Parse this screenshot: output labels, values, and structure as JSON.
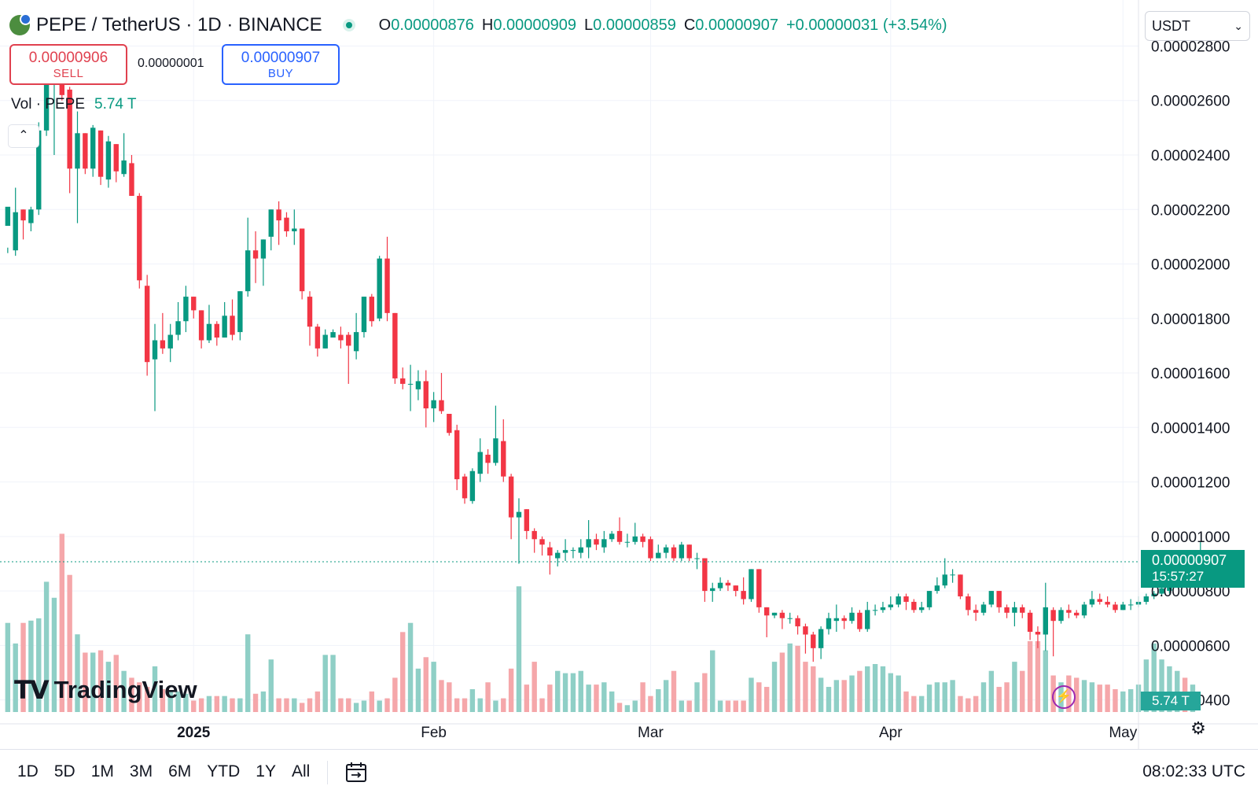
{
  "header": {
    "symbol": "PEPE / TetherUS · 1D · BINANCE",
    "open_key": "O",
    "open": "0.00000876",
    "high_key": "H",
    "high": "0.00000909",
    "low_key": "L",
    "low": "0.00000859",
    "close_key": "C",
    "close": "0.00000907",
    "change": "+0.00000031 (+3.54%)"
  },
  "currency": "USDT",
  "trade": {
    "sell_price": "0.00000906",
    "sell_label": "SELL",
    "spread": "0.00000001",
    "buy_price": "0.00000907",
    "buy_label": "BUY"
  },
  "volume_legend": {
    "label": "Vol · PEPE",
    "value": "5.74 T"
  },
  "price_axis": {
    "labels": [
      "0.00002800",
      "0.00002600",
      "0.00002400",
      "0.00002200",
      "0.00002000",
      "0.00001800",
      "0.00001600",
      "0.00001400",
      "0.00001200",
      "0.00001000",
      "0.00000800",
      "0.00000600",
      "0.00000400"
    ]
  },
  "current_price": {
    "price": "0.00000907",
    "countdown": "15:57:27"
  },
  "current_volume": "5.74 T",
  "time_axis": [
    "2025",
    "Feb",
    "Mar",
    "Apr",
    "May"
  ],
  "toolbar": {
    "ranges": [
      "1D",
      "5D",
      "1M",
      "3M",
      "6M",
      "YTD",
      "1Y",
      "All"
    ],
    "clock": "08:02:33 UTC"
  },
  "branding": "TradingView",
  "colors": {
    "up": "#089981",
    "down": "#f23645",
    "vol_up": "#8fcfc6",
    "vol_down": "#f5a7aa"
  },
  "icons": {
    "collapse": "chevron-up-icon",
    "bolt": "lightning-icon",
    "settings": "gear-icon",
    "calendar": "calendar-icon",
    "status": "market-open-icon"
  },
  "chart_data": {
    "type": "candlestick",
    "timeframe": "1D",
    "y_range": [
      3.7e-06,
      2.94e-05
    ],
    "x_range": [
      "2024-12-07",
      "2025-05-03"
    ],
    "candles": [
      [
        2.14e-05,
        2.21e-05,
        2.06e-05,
        2.04e-05
      ],
      [
        2.05e-05,
        2.19e-05,
        2.28e-05,
        2.03e-05
      ],
      [
        2.2e-05,
        2.16e-05,
        2.2e-05,
        2.09e-05
      ],
      [
        2.15e-05,
        2.2e-05,
        2.21e-05,
        2.12e-05
      ],
      [
        2.2e-05,
        2.49e-05,
        2.52e-05,
        2.18e-05
      ],
      [
        2.49e-05,
        2.66e-05,
        2.71e-05,
        2.47e-05
      ],
      [
        2.66e-05,
        2.71e-05,
        2.8e-05,
        2.4e-05
      ],
      [
        2.7e-05,
        2.62e-05,
        2.76e-05,
        2.6e-05
      ],
      [
        2.64e-05,
        2.35e-05,
        2.65e-05,
        2.26e-05
      ],
      [
        2.35e-05,
        2.48e-05,
        2.56e-05,
        2.15e-05
      ],
      [
        2.48e-05,
        2.35e-05,
        2.48e-05,
        2.33e-05
      ],
      [
        2.35e-05,
        2.5e-05,
        2.51e-05,
        2.32e-05
      ],
      [
        2.49e-05,
        2.32e-05,
        2.49e-05,
        2.29e-05
      ],
      [
        2.31e-05,
        2.45e-05,
        2.47e-05,
        2.28e-05
      ],
      [
        2.44e-05,
        2.34e-05,
        2.44e-05,
        2.3e-05
      ],
      [
        2.33e-05,
        2.38e-05,
        2.48e-05,
        2.32e-05
      ],
      [
        2.37e-05,
        2.25e-05,
        2.4e-05,
        2.25e-05
      ],
      [
        2.25e-05,
        1.94e-05,
        2.26e-05,
        1.91e-05
      ],
      [
        1.92e-05,
        1.64e-05,
        1.96e-05,
        1.59e-05
      ],
      [
        1.65e-05,
        1.72e-05,
        1.78e-05,
        1.46e-05
      ],
      [
        1.72e-05,
        1.69e-05,
        1.82e-05,
        1.67e-05
      ],
      [
        1.69e-05,
        1.74e-05,
        1.78e-05,
        1.64e-05
      ],
      [
        1.74e-05,
        1.79e-05,
        1.86e-05,
        1.72e-05
      ],
      [
        1.79e-05,
        1.88e-05,
        1.92e-05,
        1.75e-05
      ],
      [
        1.88e-05,
        1.83e-05,
        1.88e-05,
        1.8e-05
      ],
      [
        1.83e-05,
        1.72e-05,
        1.83e-05,
        1.69e-05
      ],
      [
        1.72e-05,
        1.78e-05,
        1.85e-05,
        1.71e-05
      ],
      [
        1.78e-05,
        1.73e-05,
        1.79e-05,
        1.7e-05
      ],
      [
        1.73e-05,
        1.81e-05,
        1.86e-05,
        1.73e-05
      ],
      [
        1.81e-05,
        1.74e-05,
        1.87e-05,
        1.72e-05
      ],
      [
        1.75e-05,
        1.9e-05,
        1.9e-05,
        1.72e-05
      ],
      [
        1.9e-05,
        2.05e-05,
        2.17e-05,
        1.88e-05
      ],
      [
        2.05e-05,
        2.02e-05,
        2.12e-05,
        1.93e-05
      ],
      [
        2.02e-05,
        2.09e-05,
        2.09e-05,
        1.92e-05
      ],
      [
        2.1e-05,
        2.2e-05,
        2.2e-05,
        2.05e-05
      ],
      [
        2.2e-05,
        2.16e-05,
        2.23e-05,
        2.07e-05
      ],
      [
        2.17e-05,
        2.12e-05,
        2.19e-05,
        2.1e-05
      ],
      [
        2.12e-05,
        2.13e-05,
        2.2e-05,
        2.07e-05
      ],
      [
        2.13e-05,
        1.9e-05,
        2.13e-05,
        1.87e-05
      ],
      [
        1.88e-05,
        1.77e-05,
        1.9e-05,
        1.7e-05
      ],
      [
        1.77e-05,
        1.69e-05,
        1.78e-05,
        1.66e-05
      ],
      [
        1.69e-05,
        1.74e-05,
        1.76e-05,
        1.69e-05
      ],
      [
        1.73e-05,
        1.75e-05,
        1.76e-05,
        1.74e-05
      ],
      [
        1.74e-05,
        1.72e-05,
        1.77e-05,
        1.69e-05
      ],
      [
        1.74e-05,
        1.7e-05,
        1.75e-05,
        1.56e-05
      ],
      [
        1.68e-05,
        1.75e-05,
        1.82e-05,
        1.65e-05
      ],
      [
        1.75e-05,
        1.88e-05,
        1.88e-05,
        1.73e-05
      ],
      [
        1.88e-05,
        1.79e-05,
        1.89e-05,
        1.77e-05
      ],
      [
        1.8e-05,
        2.02e-05,
        2.03e-05,
        1.79e-05
      ],
      [
        2.02e-05,
        1.82e-05,
        2.1e-05,
        1.79e-05
      ],
      [
        1.82e-05,
        1.58e-05,
        1.82e-05,
        1.56e-05
      ],
      [
        1.58e-05,
        1.56e-05,
        1.62e-05,
        1.54e-05
      ],
      [
        1.56e-05,
        1.56e-05,
        1.63e-05,
        1.46e-05
      ],
      [
        1.54e-05,
        1.57e-05,
        1.61e-05,
        1.5e-05
      ],
      [
        1.57e-05,
        1.47e-05,
        1.61e-05,
        1.4e-05
      ],
      [
        1.47e-05,
        1.5e-05,
        1.53e-05,
        1.42e-05
      ],
      [
        1.5e-05,
        1.46e-05,
        1.6e-05,
        1.45e-05
      ],
      [
        1.45e-05,
        1.38e-05,
        1.45e-05,
        1.37e-05
      ],
      [
        1.39e-05,
        1.21e-05,
        1.41e-05,
        1.17e-05
      ],
      [
        1.22e-05,
        1.14e-05,
        1.23e-05,
        1.12e-05
      ],
      [
        1.13e-05,
        1.24e-05,
        1.25e-05,
        1.12e-05
      ],
      [
        1.23e-05,
        1.31e-05,
        1.36e-05,
        1.2e-05
      ],
      [
        1.3e-05,
        1.27e-05,
        1.32e-05,
        1.23e-05
      ],
      [
        1.27e-05,
        1.36e-05,
        1.48e-05,
        1.26e-05
      ],
      [
        1.35e-05,
        1.22e-05,
        1.43e-05,
        1.2e-05
      ],
      [
        1.22e-05,
        1.07e-05,
        1.23e-05,
        9.9e-06
      ],
      [
        1.07e-05,
        1.09e-05,
        1.14e-05,
        9e-06
      ],
      [
        1.1e-05,
        1.02e-05,
        1.1e-05,
        9.9e-06
      ],
      [
        1.02e-05,
        9.9e-06,
        1.03e-05,
        9.4e-06
      ],
      [
        9.9e-06,
        9.7e-06,
        1e-05,
        9.3e-06
      ],
      [
        9.6e-06,
        9.3e-06,
        9.8e-06,
        8.6e-06
      ],
      [
        9.2e-06,
        9.4e-06,
        9.5e-06,
        8.9e-06
      ],
      [
        9.4e-06,
        9.5e-06,
        9.9e-06,
        9.1e-06
      ],
      [
        9.5e-06,
        9.5e-06,
        9.6e-06,
        9.2e-06
      ],
      [
        9.4e-06,
        9.6e-06,
        9.9e-06,
        9.2e-06
      ],
      [
        9.6e-06,
        9.9e-06,
        1.06e-05,
        9.2e-06
      ],
      [
        9.9e-06,
        9.7e-06,
        1.01e-05,
        9.5e-06
      ],
      [
        9.6e-06,
        9.9e-06,
        1.02e-05,
        9.4e-06
      ],
      [
        9.9e-06,
        1.01e-05,
        1.02e-05,
        9.8e-06
      ],
      [
        1.02e-05,
        9.8e-06,
        1.07e-05,
        9.7e-06
      ],
      [
        9.8e-06,
        9.8e-06,
        1.01e-05,
        9.6e-06
      ],
      [
        9.8e-06,
        1e-05,
        1.05e-05,
        9.7e-06
      ],
      [
        1e-05,
        9.8e-06,
        1.01e-05,
        9.6e-06
      ],
      [
        9.9e-06,
        9.2e-06,
        1e-05,
        9.1e-06
      ],
      [
        9.2e-06,
        9.4e-06,
        9.7e-06,
        9.2e-06
      ],
      [
        9.4e-06,
        9.6e-06,
        9.7e-06,
        9.2e-06
      ],
      [
        9.6e-06,
        9.2e-06,
        9.7e-06,
        9.1e-06
      ],
      [
        9.2e-06,
        9.7e-06,
        9.8e-06,
        9.1e-06
      ],
      [
        9.7e-06,
        9.2e-06,
        9.7e-06,
        9.1e-06
      ],
      [
        9.2e-06,
        9.2e-06,
        9.4e-06,
        8.8e-06
      ],
      [
        9.2e-06,
        8e-06,
        9.2e-06,
        7.6e-06
      ],
      [
        8e-06,
        8.1e-06,
        8.3e-06,
        7.6e-06
      ],
      [
        8.1e-06,
        8.3e-06,
        8.5e-06,
        8e-06
      ],
      [
        8.3e-06,
        8.2e-06,
        8.4e-06,
        8e-06
      ],
      [
        8.2e-06,
        8e-06,
        8.2e-06,
        7.8e-06
      ],
      [
        8e-06,
        7.7e-06,
        8.5e-06,
        7.5e-06
      ],
      [
        7.7e-06,
        8.8e-06,
        8.8e-06,
        7.6e-06
      ],
      [
        8.8e-06,
        7.4e-06,
        8.8e-06,
        7.2e-06
      ],
      [
        7.4e-06,
        7.1e-06,
        7.4e-06,
        6.3e-06
      ],
      [
        7.1e-06,
        7.2e-06,
        7.2e-06,
        7e-06
      ],
      [
        7.2e-06,
        7e-06,
        7.3e-06,
        6.6e-06
      ],
      [
        7e-06,
        7e-06,
        7.2e-06,
        6.8e-06
      ],
      [
        7e-06,
        6.7e-06,
        7.1e-06,
        6.4e-06
      ],
      [
        6.7e-06,
        6.4e-06,
        6.8e-06,
        5.7e-06
      ],
      [
        6.4e-06,
        5.9e-06,
        6.5e-06,
        5.4e-06
      ],
      [
        5.9e-06,
        6.6e-06,
        6.7e-06,
        5.5e-06
      ],
      [
        6.6e-06,
        7e-06,
        7.2e-06,
        6.4e-06
      ],
      [
        6.9e-06,
        7e-06,
        7.5e-06,
        6.5e-06
      ],
      [
        7e-06,
        6.9e-06,
        7.1e-06,
        6.6e-06
      ],
      [
        6.9e-06,
        7.2e-06,
        7.4e-06,
        6.8e-06
      ],
      [
        7.2e-06,
        6.6e-06,
        7.3e-06,
        6.5e-06
      ],
      [
        6.6e-06,
        7.3e-06,
        7.6e-06,
        6.5e-06
      ],
      [
        7.3e-06,
        7.3e-06,
        7.5e-06,
        7.1e-06
      ],
      [
        7.3e-06,
        7.4e-06,
        7.6e-06,
        7.2e-06
      ],
      [
        7.4e-06,
        7.5e-06,
        7.8e-06,
        7.3e-06
      ],
      [
        7.5e-06,
        7.8e-06,
        7.9e-06,
        7.4e-06
      ],
      [
        7.8e-06,
        7.6e-06,
        7.9e-06,
        7.3e-06
      ],
      [
        7.6e-06,
        7.3e-06,
        7.7e-06,
        7.2e-06
      ],
      [
        7.3e-06,
        7.4e-06,
        7.6e-06,
        7.2e-06
      ],
      [
        7.4e-06,
        8e-06,
        8e-06,
        7.3e-06
      ],
      [
        8e-06,
        8.2e-06,
        8.5e-06,
        7.9e-06
      ],
      [
        8.2e-06,
        8.6e-06,
        9.2e-06,
        8.1e-06
      ],
      [
        8.6e-06,
        8.6e-06,
        8.8e-06,
        8.3e-06
      ],
      [
        8.6e-06,
        7.8e-06,
        8.6e-06,
        7.7e-06
      ],
      [
        7.8e-06,
        7.3e-06,
        7.9e-06,
        7.1e-06
      ],
      [
        7.3e-06,
        7.2e-06,
        7.5e-06,
        6.9e-06
      ],
      [
        7.2e-06,
        7.5e-06,
        7.6e-06,
        7.1e-06
      ],
      [
        7.5e-06,
        8e-06,
        8e-06,
        7.4e-06
      ],
      [
        8e-06,
        7.4e-06,
        8e-06,
        7.2e-06
      ],
      [
        7.4e-06,
        7.2e-06,
        7.5e-06,
        7e-06
      ],
      [
        7.2e-06,
        7.4e-06,
        7.6e-06,
        6.7e-06
      ],
      [
        7.4e-06,
        7.2e-06,
        7.5e-06,
        7e-06
      ],
      [
        7.2e-06,
        6.5e-06,
        7.3e-06,
        6.2e-06
      ],
      [
        6.5e-06,
        6.4e-06,
        6.7e-06,
        5.9e-06
      ],
      [
        6.4e-06,
        7.4e-06,
        8.3e-06,
        5.8e-06
      ],
      [
        7.3e-06,
        6.9e-06,
        7.4e-06,
        5.6e-06
      ],
      [
        6.9e-06,
        7.3e-06,
        7.4e-06,
        6.8e-06
      ],
      [
        7.3e-06,
        7.2e-06,
        7.5e-06,
        7e-06
      ],
      [
        7.2e-06,
        7.1e-06,
        7.3e-06,
        7e-06
      ],
      [
        7.1e-06,
        7.5e-06,
        7.6e-06,
        7e-06
      ],
      [
        7.5e-06,
        7.7e-06,
        8e-06,
        7.4e-06
      ],
      [
        7.7e-06,
        7.6e-06,
        7.9e-06,
        7.5e-06
      ],
      [
        7.6e-06,
        7.5e-06,
        7.8e-06,
        7.4e-06
      ],
      [
        7.5e-06,
        7.3e-06,
        7.6e-06,
        7.2e-06
      ],
      [
        7.3e-06,
        7.5e-06,
        7.6e-06,
        7.3e-06
      ],
      [
        7.5e-06,
        7.5e-06,
        7.7e-06,
        7.3e-06
      ],
      [
        7.5e-06,
        7.6e-06,
        7.8e-06,
        7.4e-06
      ],
      [
        7.6e-06,
        7.8e-06,
        7.9e-06,
        7.5e-06
      ],
      [
        7.8e-06,
        7.9e-06,
        8e-06,
        7.7e-06
      ],
      [
        7.9e-06,
        8.1e-06,
        8.2e-06,
        7.8e-06
      ],
      [
        8e-06,
        9.1e-06,
        9.1e-06,
        7.9e-06
      ],
      [
        9.1e-06,
        9.1e-06,
        9.4e-06,
        8.9e-06
      ],
      [
        9.1e-06,
        9e-06,
        9.3e-06,
        8.7e-06
      ],
      [
        8.9e-06,
        9.2e-06,
        9.5e-06,
        8.7e-06
      ],
      [
        9.2e-06,
        9.3e-06,
        9.8e-06,
        9.1e-06
      ],
      [
        9.3e-06,
        8.8e-06,
        9.3e-06,
        8.7e-06
      ],
      [
        8.76e-06,
        9.07e-06,
        9.09e-06,
        8.59e-06
      ]
    ],
    "volumes": [
      3.9,
      3.0,
      3.9,
      4.0,
      4.1,
      5.7,
      5.0,
      7.8,
      6.0,
      3.4,
      2.6,
      2.6,
      2.7,
      2.2,
      2.5,
      1.8,
      1.5,
      1.3,
      1.1,
      2.0,
      1.0,
      0.9,
      0.9,
      0.8,
      0.5,
      0.6,
      0.7,
      0.7,
      0.7,
      0.6,
      0.6,
      3.4,
      0.8,
      0.9,
      2.3,
      0.6,
      0.6,
      0.6,
      0.4,
      0.6,
      0.9,
      2.5,
      2.5,
      0.6,
      0.6,
      0.4,
      0.5,
      0.9,
      0.5,
      0.6,
      1.5,
      3.5,
      3.9,
      1.9,
      2.4,
      2.2,
      1.4,
      1.3,
      0.6,
      0.6,
      1.0,
      0.6,
      1.3,
      0.5,
      0.6,
      1.9,
      5.5,
      1.2,
      2.2,
      0.6,
      1.2,
      1.8,
      1.7,
      1.7,
      1.8,
      1.2,
      1.2,
      1.3,
      0.9,
      0.4,
      0.3,
      0.5,
      1.3,
      0.7,
      1.0,
      1.4,
      1.8,
      0.5,
      0.5,
      1.3,
      1.7,
      2.7,
      0.5,
      0.5,
      0.5,
      0.5,
      1.5,
      1.3,
      1.1,
      2.2,
      2.6,
      3.0,
      2.9,
      2.2,
      2.0,
      1.5,
      1.1,
      1.4,
      1.4,
      1.6,
      1.8,
      2.0,
      2.1,
      2.0,
      1.7,
      1.6,
      0.9,
      0.7,
      0.7,
      1.2,
      1.3,
      1.3,
      1.4,
      0.7,
      0.6,
      0.7,
      1.3,
      1.8,
      1.1,
      1.3,
      2.2,
      1.8,
      3.1,
      3.1,
      2.7,
      1.6,
      1.3,
      1.6,
      1.5,
      1.4,
      1.3,
      1.2,
      1.2,
      1.0,
      0.9,
      1.0,
      1.2,
      2.3,
      3.0,
      2.3,
      2.0,
      1.8,
      1.5,
      1.2
    ]
  }
}
